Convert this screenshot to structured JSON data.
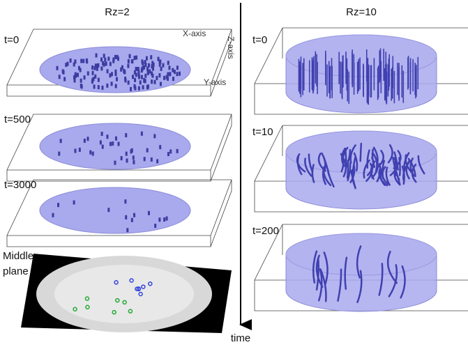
{
  "columns": [
    {
      "title": "Rz=2",
      "panels": [
        "t=0",
        "t=500",
        "t=3000"
      ],
      "middle_plane_label": [
        "Middle",
        "plane"
      ]
    },
    {
      "title": "Rz=10",
      "panels": [
        "t=0",
        "t=10",
        "t=200"
      ]
    }
  ],
  "axes": {
    "x": "X-axis",
    "y": "Y-axis",
    "z": "Z-axis"
  },
  "time_label": "time"
}
